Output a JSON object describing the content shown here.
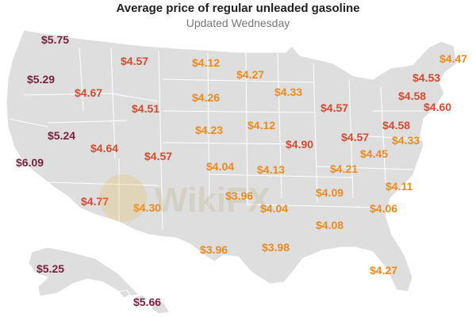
{
  "title": "Average price of regular unleaded gasoline",
  "subtitle": "Updated Wednesday",
  "colors": {
    "land": "#dedede",
    "border": "#ffffff",
    "tier_high": "#7a1f3d",
    "tier_mid": "#d64a2e",
    "tier_low": "#ee8a1a"
  },
  "watermark": "WikiFX",
  "chart_data": {
    "type": "choropleth-labels",
    "unit": "$ per gallon",
    "labels": [
      {
        "text": "$5.75",
        "tier": "high"
      },
      {
        "text": "$4.57",
        "tier": "mid"
      },
      {
        "text": "$4.12",
        "tier": "low"
      },
      {
        "text": "$4.27",
        "tier": "low"
      },
      {
        "text": "$4.47",
        "tier": "low"
      },
      {
        "text": "$5.29",
        "tier": "high"
      },
      {
        "text": "$4.67",
        "tier": "mid"
      },
      {
        "text": "$4.26",
        "tier": "low"
      },
      {
        "text": "$4.33",
        "tier": "low"
      },
      {
        "text": "$4.53",
        "tier": "mid"
      },
      {
        "text": "$4.51",
        "tier": "mid"
      },
      {
        "text": "$4.57",
        "tier": "mid"
      },
      {
        "text": "$4.58",
        "tier": "mid"
      },
      {
        "text": "$4.60",
        "tier": "mid"
      },
      {
        "text": "$5.24",
        "tier": "high"
      },
      {
        "text": "$4.23",
        "tier": "low"
      },
      {
        "text": "$4.12",
        "tier": "low"
      },
      {
        "text": "$4.58",
        "tier": "mid"
      },
      {
        "text": "$4.64",
        "tier": "mid"
      },
      {
        "text": "$4.57",
        "tier": "mid"
      },
      {
        "text": "$4.90",
        "tier": "mid"
      },
      {
        "text": "$4.57",
        "tier": "mid"
      },
      {
        "text": "$4.33",
        "tier": "low"
      },
      {
        "text": "$6.09",
        "tier": "high"
      },
      {
        "text": "$4.45",
        "tier": "low"
      },
      {
        "text": "$4.04",
        "tier": "low"
      },
      {
        "text": "$4.13",
        "tier": "low"
      },
      {
        "text": "$4.21",
        "tier": "low"
      },
      {
        "text": "$4.11",
        "tier": "low"
      },
      {
        "text": "$4.77",
        "tier": "mid"
      },
      {
        "text": "$3.96",
        "tier": "low"
      },
      {
        "text": "$4.09",
        "tier": "low"
      },
      {
        "text": "$4.30",
        "tier": "low"
      },
      {
        "text": "$4.04",
        "tier": "low"
      },
      {
        "text": "$4.06",
        "tier": "low"
      },
      {
        "text": "$4.08",
        "tier": "low"
      },
      {
        "text": "$3.96",
        "tier": "low"
      },
      {
        "text": "$3.98",
        "tier": "low"
      },
      {
        "text": "$5.25",
        "tier": "high"
      },
      {
        "text": "$4.27",
        "tier": "low"
      },
      {
        "text": "$5.66",
        "tier": "high"
      }
    ]
  }
}
